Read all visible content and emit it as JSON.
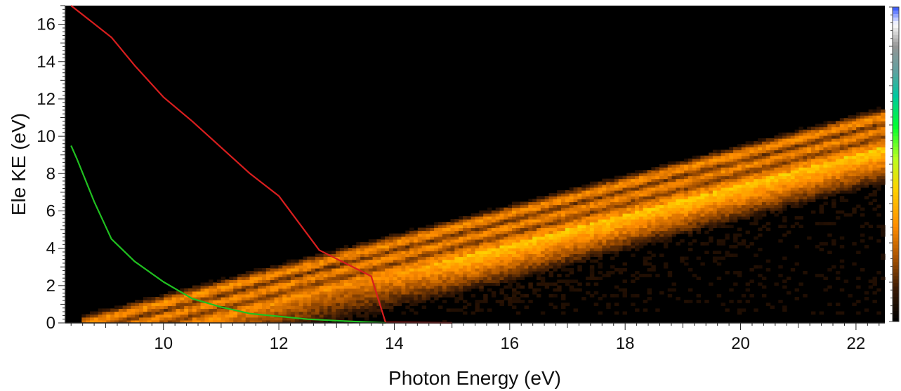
{
  "chart_data": {
    "type": "heatmap",
    "xlabel": "Photon Energy (eV)",
    "ylabel": "Ele KE (eV)",
    "xlim": [
      8.3,
      22.5
    ],
    "ylim": [
      0,
      17
    ],
    "x_ticks": [
      "10",
      "12",
      "14",
      "16",
      "18",
      "20",
      "22"
    ],
    "y_ticks": [
      "0",
      "2",
      "4",
      "6",
      "8",
      "10",
      "12",
      "14",
      "16"
    ],
    "grid": false,
    "background_color": "#000000",
    "colorbar": {
      "position": "right",
      "colors": [
        "#000000",
        "#3a1a05",
        "#a85200",
        "#ff8c00",
        "#ffd200",
        "#b8ff20",
        "#00ff30",
        "#00c8a0",
        "#60a0a0",
        "#909090",
        "#ffffff",
        "#4060ff"
      ]
    },
    "heatmap_bands": {
      "description_free": true,
      "lower_edge_offset_at_onset": 8.7,
      "slope": 0.8
    },
    "series": [
      {
        "color": "#d81e1e",
        "x": [
          8.4,
          9.1,
          9.5,
          10.0,
          10.5,
          11.0,
          11.5,
          12.0,
          12.7,
          13.6,
          13.7,
          13.85,
          14.0,
          15.0
        ],
        "y": [
          17.0,
          15.3,
          13.8,
          12.1,
          10.8,
          9.4,
          8.0,
          6.8,
          3.9,
          2.5,
          1.5,
          0.02,
          0.02,
          0.0
        ]
      },
      {
        "color": "#20c020",
        "x": [
          8.4,
          8.5,
          8.8,
          9.1,
          9.5,
          10.0,
          10.5,
          11.0,
          11.5,
          12.0,
          12.5,
          13.0,
          13.5,
          13.85
        ],
        "y": [
          9.5,
          8.8,
          6.5,
          4.5,
          3.3,
          2.2,
          1.3,
          0.85,
          0.5,
          0.35,
          0.2,
          0.12,
          0.05,
          0.0
        ]
      }
    ]
  }
}
